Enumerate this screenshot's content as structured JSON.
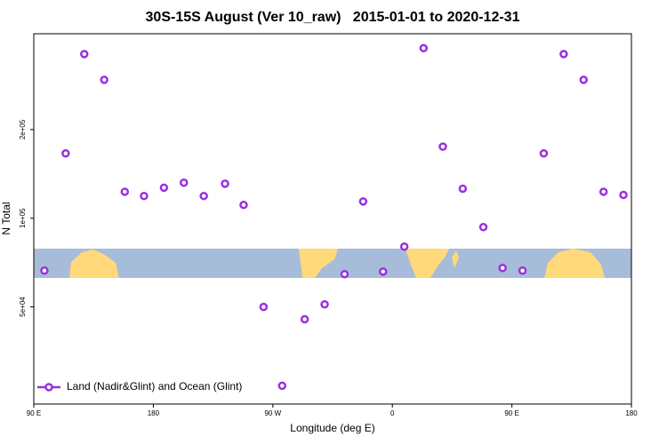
{
  "chart_data": {
    "type": "scatter",
    "title": "30S-15S August (Ver 10_raw)   2015-01-01 to 2020-12-31",
    "x_label": "Longitude (deg E)",
    "y_label": "N Total",
    "log_y": true,
    "xlim": [
      90,
      540
    ],
    "xticks": [
      {
        "value": 90,
        "label": "90 E"
      },
      180,
      {
        "value": 270,
        "label": "90 W"
      },
      {
        "value": 360,
        "label": "0"
      },
      {
        "value": 450,
        "label": "90 E"
      },
      {
        "value": 540,
        "label": "180"
      }
    ],
    "ylim": [
      23400,
      423000
    ],
    "yticks": [
      {
        "value": 50000,
        "label": "5e+04"
      },
      {
        "value": 100000,
        "label": "1e+05"
      },
      {
        "value": 200000,
        "label": "2e+05"
      }
    ],
    "series": [
      {
        "name": "Land (Nadir&Glint) and Ocean (Glint)",
        "color": "#9b30e0",
        "x": [
          98,
          114,
          128,
          143,
          158.5,
          173,
          188,
          203,
          218,
          234,
          248,
          263,
          277,
          294,
          309,
          324,
          338,
          353,
          369,
          383.5,
          398,
          413,
          428.5,
          443,
          458,
          474,
          489,
          504,
          519,
          534
        ],
        "values": [
          66400,
          166000,
          361000,
          295000,
          123000,
          119000,
          127000,
          132000,
          119000,
          131000,
          111000,
          50000,
          27000,
          45400,
          51000,
          64600,
          114000,
          65900,
          80100,
          378000,
          175000,
          126000,
          93300,
          67800,
          66400,
          166000,
          361000,
          295000,
          123000,
          120000
        ]
      }
    ]
  }
}
